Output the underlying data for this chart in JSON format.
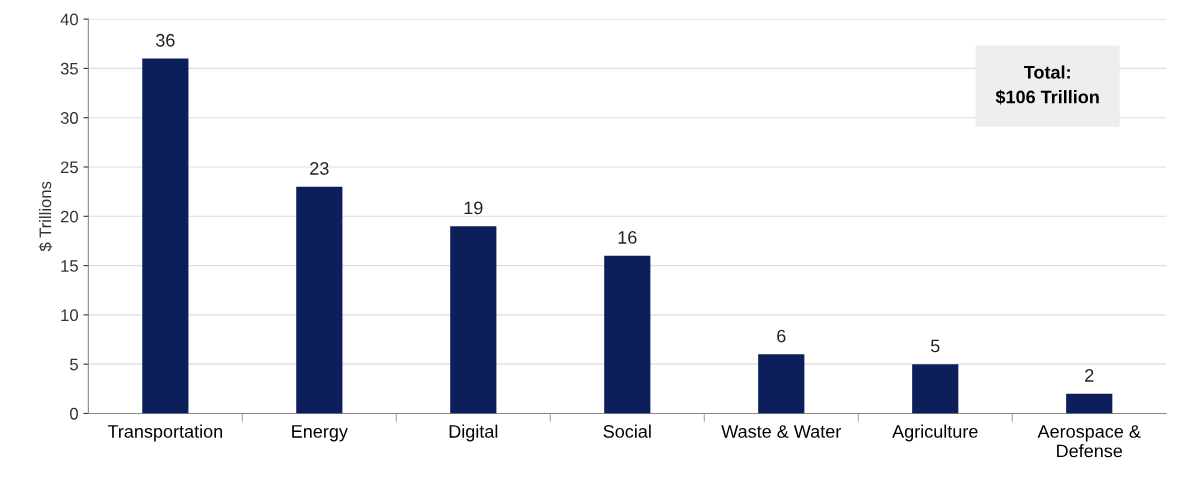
{
  "chart_data": {
    "type": "bar",
    "ylabel": "$ Trillions",
    "categories": [
      "Transportation",
      "Energy",
      "Digital",
      "Social",
      "Waste & Water",
      "Agriculture",
      "Aerospace &\nDefense"
    ],
    "values": [
      36,
      23,
      19,
      16,
      6,
      5,
      2
    ],
    "color": "#0c1f5b",
    "ylim": [
      0,
      40
    ],
    "yticks": [
      0,
      5,
      10,
      15,
      20,
      25,
      30,
      35,
      40
    ],
    "grid": "y",
    "data_labels": true,
    "annotations": [
      "Total:\n$106 Trillion"
    ]
  }
}
